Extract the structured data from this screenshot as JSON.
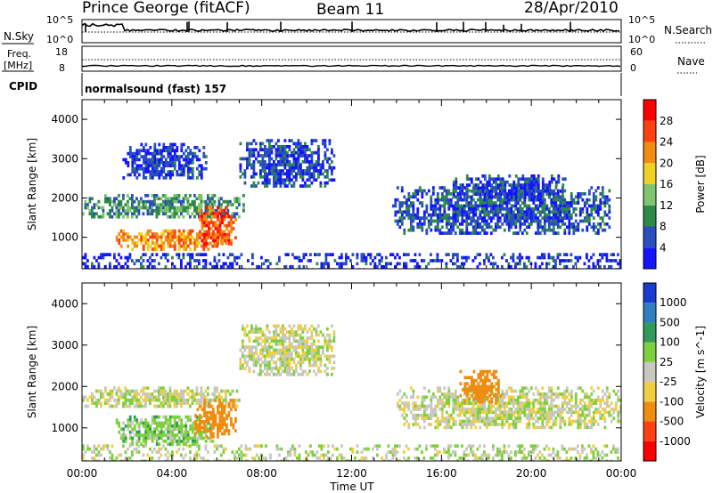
{
  "header": {
    "station": "Prince George (fitACF)",
    "beam": "Beam 11",
    "date": "28/Apr/2010"
  },
  "nsky_panel": {
    "left_label": "N.Sky",
    "left_top": "10^5",
    "left_bottom": "10^0",
    "right_label": "N.Search",
    "right_top": "10^5",
    "right_bottom": "10^0"
  },
  "freq_panel": {
    "left_label_1": "Freq.",
    "left_label_2": "[MHz]",
    "left_top": "18",
    "left_bottom": "8",
    "right_label": "Nave",
    "right_top": "60",
    "right_bottom": "0"
  },
  "cpid_panel": {
    "left_label": "CPID",
    "mode_text": "normalsound (fast) 157"
  },
  "x_axis": {
    "label": "Time UT",
    "ticks": [
      "00:00",
      "04:00",
      "08:00",
      "12:00",
      "16:00",
      "20:00",
      "00:00"
    ]
  },
  "chart_data": [
    {
      "type": "heatmap",
      "quantity": "Power",
      "ylabel": "Slant Range [km]",
      "xlabel": "Time UT",
      "xlim_hours": [
        0,
        24
      ],
      "ylim_km": [
        200,
        4500
      ],
      "y_ticks": [
        "1000",
        "2000",
        "3000",
        "4000"
      ],
      "colorbar_label": "Power [dB]",
      "colorbar_ticks": [
        "4",
        "8",
        "12",
        "16",
        "20",
        "24",
        "28"
      ],
      "colorbar_colors": [
        "#1414ff",
        "#2a4fbd",
        "#2f8a4a",
        "#7fc46f",
        "#f0d020",
        "#f08c10",
        "#ff4010",
        "#ff0000"
      ],
      "regions": [
        {
          "t": [
            0.0,
            7.2
          ],
          "r": [
            1500,
            2100
          ],
          "level": 10
        },
        {
          "t": [
            1.5,
            6.5
          ],
          "r": [
            700,
            1200
          ],
          "level": 22
        },
        {
          "t": [
            5.2,
            6.8
          ],
          "r": [
            800,
            1800
          ],
          "level": 26
        },
        {
          "t": [
            1.8,
            5.5
          ],
          "r": [
            2500,
            3400
          ],
          "level": 4
        },
        {
          "t": [
            7.0,
            11.2
          ],
          "r": [
            2300,
            3500
          ],
          "level": 5
        },
        {
          "t": [
            13.8,
            23.5
          ],
          "r": [
            1100,
            2300
          ],
          "level": 6
        },
        {
          "t": [
            16.5,
            21.5
          ],
          "r": [
            2000,
            2600
          ],
          "level": 5
        },
        {
          "t": [
            0.0,
            24.0
          ],
          "r": [
            200,
            600
          ],
          "level": 4
        }
      ]
    },
    {
      "type": "heatmap",
      "quantity": "Velocity",
      "ylabel": "Slant Range [km]",
      "xlabel": "Time UT",
      "xlim_hours": [
        0,
        24
      ],
      "ylim_km": [
        200,
        4500
      ],
      "y_ticks": [
        "1000",
        "2000",
        "3000",
        "4000"
      ],
      "colorbar_label": "Velocity [m s^-1]",
      "colorbar_ticks": [
        "1000",
        "500",
        "100",
        "25",
        "-25",
        "-100",
        "-500",
        "-1000"
      ],
      "colorbar_colors": [
        "#1a3ad0",
        "#2f7fc0",
        "#2f9a5a",
        "#7fd040",
        "#c8c8c0",
        "#f0d040",
        "#f08c10",
        "#ff4010",
        "#ff0000"
      ],
      "regions": [
        {
          "t": [
            0.0,
            7.0
          ],
          "r": [
            1500,
            2000
          ],
          "value": 0
        },
        {
          "t": [
            1.5,
            5.8
          ],
          "r": [
            600,
            1300
          ],
          "value": 60
        },
        {
          "t": [
            5.0,
            6.8
          ],
          "r": [
            800,
            1700
          ],
          "value": -300
        },
        {
          "t": [
            7.0,
            11.2
          ],
          "r": [
            2300,
            3500
          ],
          "value": 0
        },
        {
          "t": [
            14.0,
            24.0
          ],
          "r": [
            1000,
            2000
          ],
          "value": 0
        },
        {
          "t": [
            16.8,
            18.6
          ],
          "r": [
            1600,
            2400
          ],
          "value": -200
        },
        {
          "t": [
            0.0,
            24.0
          ],
          "r": [
            200,
            600
          ],
          "value": 20
        }
      ]
    }
  ]
}
